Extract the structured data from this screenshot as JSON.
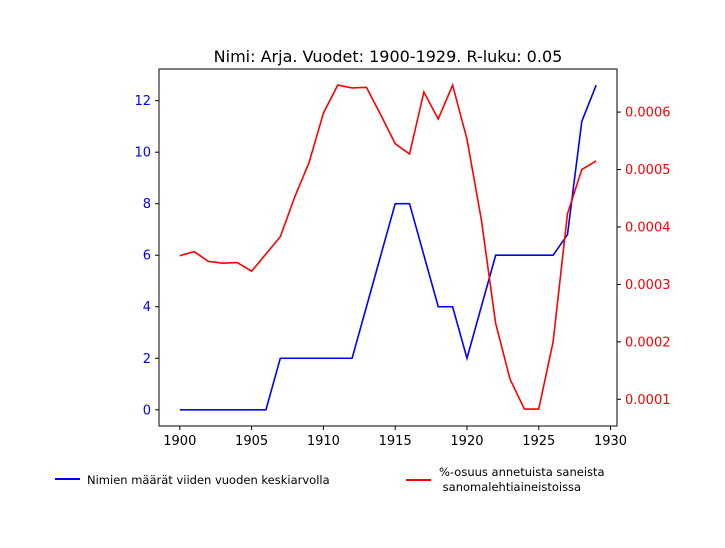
{
  "chart_data": {
    "type": "line",
    "title": "Nimi: Arja. Vuodet: 1900-1929. R-luku: 0.05",
    "x": [
      1900,
      1901,
      1902,
      1903,
      1904,
      1905,
      1906,
      1907,
      1908,
      1909,
      1910,
      1911,
      1912,
      1913,
      1914,
      1915,
      1916,
      1917,
      1918,
      1919,
      1920,
      1921,
      1922,
      1923,
      1924,
      1925,
      1926,
      1927,
      1928,
      1929
    ],
    "xlim": [
      1898.55,
      1930.45
    ],
    "xticks": [
      1900,
      1905,
      1910,
      1915,
      1920,
      1925,
      1930
    ],
    "left_axis": {
      "color": "#0000ff",
      "ylim": [
        -0.63,
        13.23
      ],
      "ticks": [
        0,
        2,
        4,
        6,
        8,
        10,
        12
      ]
    },
    "right_axis": {
      "color": "#ff0000",
      "ylim": [
        5.35e-05,
        0.000675
      ],
      "ticks": [
        0.0001,
        0.0002,
        0.0003,
        0.0004,
        0.0005,
        0.0006
      ],
      "tick_labels": [
        "0.0001",
        "0.0002",
        "0.0003",
        "0.0004",
        "0.0005",
        "0.0006"
      ]
    },
    "series": [
      {
        "name": "Nimien määrät viiden vuoden keskiarvolla",
        "axis": "left",
        "color": "#0000ff",
        "values": [
          0,
          0,
          0,
          0,
          0,
          0,
          0,
          2,
          2,
          2,
          2,
          2,
          2,
          4,
          6,
          8,
          8,
          6,
          4,
          4,
          2,
          4,
          6,
          6,
          6,
          6,
          6,
          6.8,
          11.2,
          12.6
        ]
      },
      {
        "name": "%-osuus annetuista saneista\n sanomalehtiaineistoissa",
        "axis": "right",
        "color": "#ff0000",
        "values": [
          0.00035,
          0.000357,
          0.00034,
          0.000337,
          0.000338,
          0.000323,
          0.000353,
          0.000383,
          0.000452,
          0.000512,
          0.000598,
          0.000647,
          0.000642,
          0.000643,
          0.000595,
          0.000545,
          0.000527,
          0.000635,
          0.000588,
          0.000647,
          0.000553,
          0.000413,
          0.000232,
          0.000135,
          8.3e-05,
          8.3e-05,
          0.0002,
          0.000423,
          0.0005,
          0.000515
        ]
      }
    ],
    "legend_placement": "below"
  }
}
